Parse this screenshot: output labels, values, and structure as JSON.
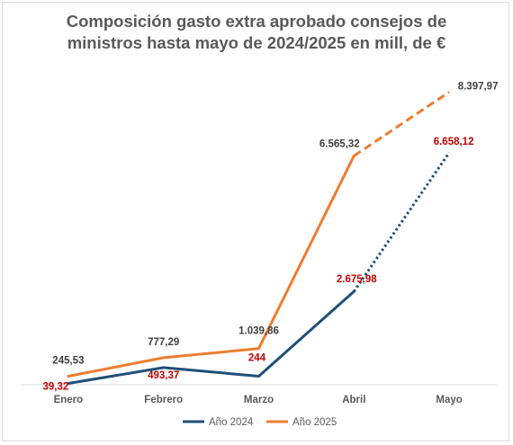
{
  "chart_data": {
    "type": "line",
    "title_line1": "Composición gasto extra aprobado consejos de",
    "title_line2": "ministros hasta mayo de 2024/2025 en mill, de €",
    "categories": [
      "Enero",
      "Febrero",
      "Marzo",
      "Abril",
      "Mayo"
    ],
    "series": [
      {
        "name": "Año 2024",
        "color": "#1F4E79",
        "values": [
          39.32,
          493.37,
          244,
          2675.98,
          6658.12
        ],
        "labels": [
          "39,32",
          "493,37",
          "244",
          "2.675,98",
          "6.658,12"
        ],
        "label_color": "#C00000",
        "dotted_last_segment": true
      },
      {
        "name": "Año 2025",
        "color": "#ED7D31",
        "values": [
          245.53,
          777.29,
          1039.86,
          6565.32,
          8397.97
        ],
        "labels": [
          "245,53",
          "777,29",
          "1.039,86",
          "6.565,32",
          "8.397,97"
        ],
        "label_color": "#404040",
        "dashed_last_segment": true
      }
    ],
    "ylim": [
      0,
      9000
    ],
    "grid": false,
    "legend_position": "bottom"
  }
}
